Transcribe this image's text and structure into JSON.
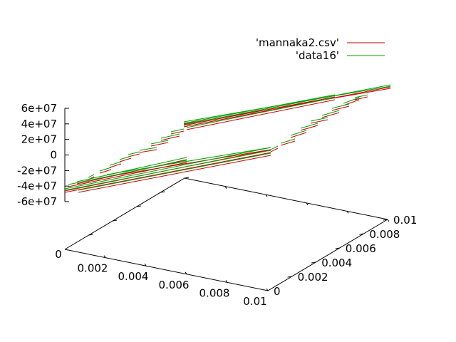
{
  "chart_data": {
    "type": "line",
    "subtype": "3d-surface-plot",
    "title": "",
    "legend": {
      "placement": "top-right",
      "entries": [
        {
          "label": "'mannaka2.csv'",
          "color": "#cc0000"
        },
        {
          "label": "'data16'",
          "color": "#00a000"
        }
      ]
    },
    "x_axis": {
      "label": "",
      "range": [
        0,
        0.01
      ],
      "ticks": [
        "0",
        "0.002",
        "0.004",
        "0.006",
        "0.008",
        "0.01"
      ]
    },
    "y_axis": {
      "label": "",
      "range": [
        0,
        0.01
      ],
      "ticks": [
        "0",
        "0.002",
        "0.004",
        "0.006",
        "0.008",
        "0.01"
      ]
    },
    "z_axis": {
      "label": "",
      "range": [
        -60000000,
        60000000
      ],
      "ticks": [
        "6e+07",
        "4e+07",
        "2e+07",
        "0",
        "-2e+07",
        "-4e+07",
        "-6e+07"
      ]
    },
    "grid": false,
    "series": [
      {
        "name": "'mannaka2.csv'",
        "color": "#cc0000",
        "value_range": [
          -48000000,
          60000000
        ]
      },
      {
        "name": "'data16'",
        "color": "#00a000",
        "value_range": [
          -50000000,
          62000000
        ]
      }
    ]
  }
}
